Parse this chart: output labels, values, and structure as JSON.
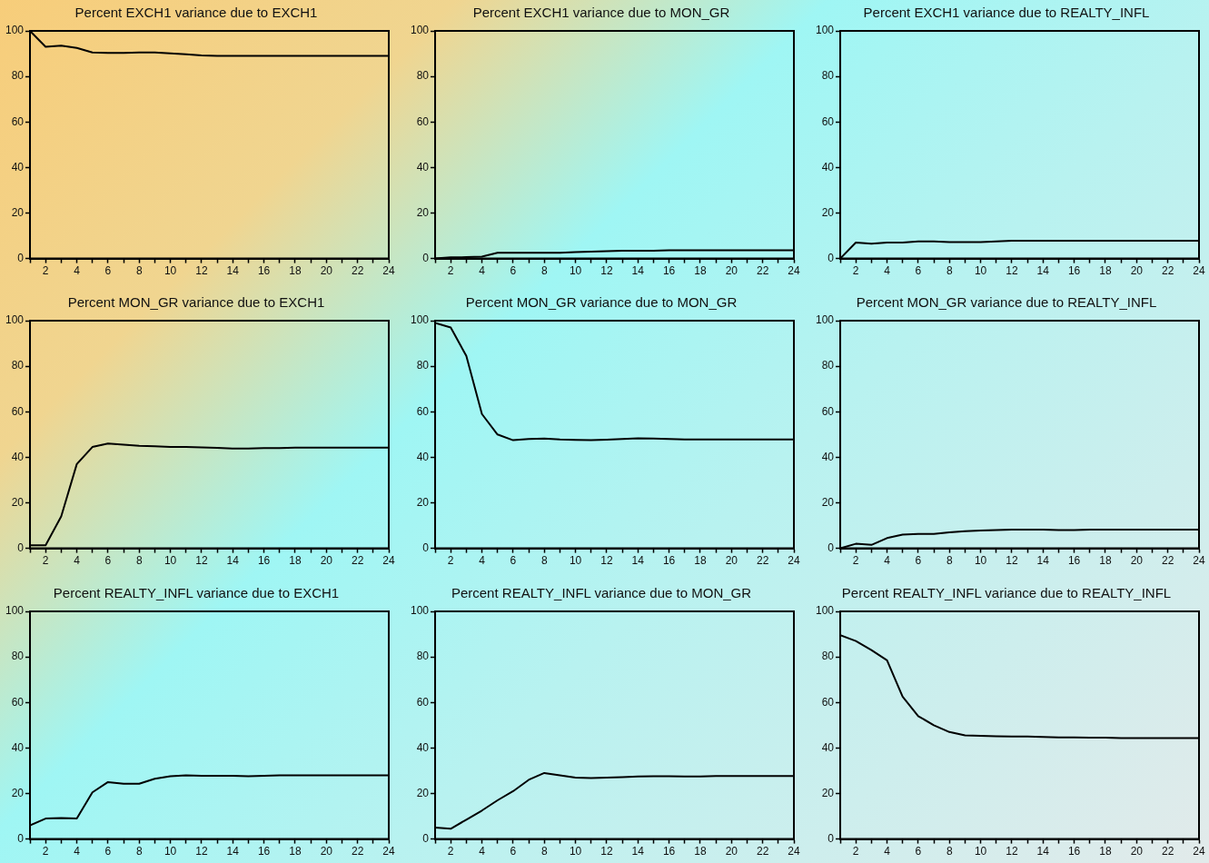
{
  "chart_data": [
    {
      "type": "line",
      "title": "Percent EXCH1 variance due to EXCH1",
      "x": [
        1,
        2,
        3,
        4,
        5,
        6,
        7,
        8,
        9,
        10,
        11,
        12,
        13,
        14,
        15,
        16,
        17,
        18,
        19,
        20,
        21,
        22,
        23,
        24
      ],
      "values": [
        100,
        93,
        93.5,
        92.5,
        90.5,
        90.3,
        90.3,
        90.5,
        90.5,
        90.1,
        89.7,
        89.2,
        89,
        89,
        89,
        89,
        89,
        89,
        89,
        89,
        89,
        89,
        89,
        89
      ],
      "color": "#000000",
      "marker": "none",
      "grid": false,
      "legend": false,
      "xlim": [
        1,
        24
      ],
      "xticks": [
        {
          "value": 1,
          "label": null
        },
        2,
        {
          "value": 3,
          "label": null
        },
        4,
        {
          "value": 5,
          "label": null
        },
        6,
        {
          "value": 7,
          "label": null
        },
        8,
        {
          "value": 9,
          "label": null
        },
        10,
        {
          "value": 11,
          "label": null
        },
        12,
        {
          "value": 13,
          "label": null
        },
        14,
        {
          "value": 15,
          "label": null
        },
        16,
        {
          "value": 17,
          "label": null
        },
        18,
        {
          "value": 19,
          "label": null
        },
        20,
        {
          "value": 21,
          "label": null
        },
        22,
        {
          "value": 23,
          "label": null
        },
        24
      ],
      "ylim": [
        0,
        100
      ],
      "yticks": [
        0,
        20,
        40,
        60,
        80,
        100
      ]
    },
    {
      "type": "line",
      "title": "Percent EXCH1 variance due to MON_GR",
      "x": [
        1,
        2,
        3,
        4,
        5,
        6,
        7,
        8,
        9,
        10,
        11,
        12,
        13,
        14,
        15,
        16,
        17,
        18,
        19,
        20,
        21,
        22,
        23,
        24
      ],
      "values": [
        0,
        0.5,
        0.6,
        0.8,
        2.5,
        2.5,
        2.5,
        2.5,
        2.5,
        2.8,
        3,
        3.2,
        3.4,
        3.4,
        3.4,
        3.6,
        3.6,
        3.6,
        3.6,
        3.6,
        3.6,
        3.6,
        3.6,
        3.6
      ],
      "color": "#000000",
      "marker": "none",
      "grid": false,
      "legend": false,
      "xlim": [
        1,
        24
      ],
      "xticks": [
        {
          "value": 1,
          "label": null
        },
        2,
        {
          "value": 3,
          "label": null
        },
        4,
        {
          "value": 5,
          "label": null
        },
        6,
        {
          "value": 7,
          "label": null
        },
        8,
        {
          "value": 9,
          "label": null
        },
        10,
        {
          "value": 11,
          "label": null
        },
        12,
        {
          "value": 13,
          "label": null
        },
        14,
        {
          "value": 15,
          "label": null
        },
        16,
        {
          "value": 17,
          "label": null
        },
        18,
        {
          "value": 19,
          "label": null
        },
        20,
        {
          "value": 21,
          "label": null
        },
        22,
        {
          "value": 23,
          "label": null
        },
        24
      ],
      "ylim": [
        0,
        100
      ],
      "yticks": [
        0,
        20,
        40,
        60,
        80,
        100
      ]
    },
    {
      "type": "line",
      "title": "Percent EXCH1 variance due to REALTY_INFL",
      "x": [
        1,
        2,
        3,
        4,
        5,
        6,
        7,
        8,
        9,
        10,
        11,
        12,
        13,
        14,
        15,
        16,
        17,
        18,
        19,
        20,
        21,
        22,
        23,
        24
      ],
      "values": [
        0,
        7,
        6.5,
        7,
        7,
        7.5,
        7.5,
        7.2,
        7.2,
        7.2,
        7.5,
        7.8,
        7.8,
        7.8,
        7.8,
        7.8,
        7.8,
        7.8,
        7.8,
        7.8,
        7.8,
        7.8,
        7.8,
        7.8
      ],
      "color": "#000000",
      "marker": "none",
      "grid": false,
      "legend": false,
      "xlim": [
        1,
        24
      ],
      "xticks": [
        {
          "value": 1,
          "label": null
        },
        2,
        {
          "value": 3,
          "label": null
        },
        4,
        {
          "value": 5,
          "label": null
        },
        6,
        {
          "value": 7,
          "label": null
        },
        8,
        {
          "value": 9,
          "label": null
        },
        10,
        {
          "value": 11,
          "label": null
        },
        12,
        {
          "value": 13,
          "label": null
        },
        14,
        {
          "value": 15,
          "label": null
        },
        16,
        {
          "value": 17,
          "label": null
        },
        18,
        {
          "value": 19,
          "label": null
        },
        20,
        {
          "value": 21,
          "label": null
        },
        22,
        {
          "value": 23,
          "label": null
        },
        24
      ],
      "ylim": [
        0,
        100
      ],
      "yticks": [
        0,
        20,
        40,
        60,
        80,
        100
      ]
    },
    {
      "type": "line",
      "title": "Percent MON_GR variance due to EXCH1",
      "x": [
        1,
        2,
        3,
        4,
        5,
        6,
        7,
        8,
        9,
        10,
        11,
        12,
        13,
        14,
        15,
        16,
        17,
        18,
        19,
        20,
        21,
        22,
        23,
        24
      ],
      "values": [
        1.3,
        1.3,
        14,
        37,
        44.5,
        46,
        45.5,
        45,
        44.8,
        44.5,
        44.5,
        44.3,
        44.1,
        43.8,
        43.8,
        44,
        44,
        44.2,
        44.2,
        44.2,
        44.2,
        44.2,
        44.2,
        44.2
      ],
      "color": "#000000",
      "marker": "none",
      "grid": false,
      "legend": false,
      "xlim": [
        1,
        24
      ],
      "xticks": [
        {
          "value": 1,
          "label": null
        },
        2,
        {
          "value": 3,
          "label": null
        },
        4,
        {
          "value": 5,
          "label": null
        },
        6,
        {
          "value": 7,
          "label": null
        },
        8,
        {
          "value": 9,
          "label": null
        },
        10,
        {
          "value": 11,
          "label": null
        },
        12,
        {
          "value": 13,
          "label": null
        },
        14,
        {
          "value": 15,
          "label": null
        },
        16,
        {
          "value": 17,
          "label": null
        },
        18,
        {
          "value": 19,
          "label": null
        },
        20,
        {
          "value": 21,
          "label": null
        },
        22,
        {
          "value": 23,
          "label": null
        },
        24
      ],
      "ylim": [
        0,
        100
      ],
      "yticks": [
        0,
        20,
        40,
        60,
        80,
        100
      ]
    },
    {
      "type": "line",
      "title": "Percent MON_GR variance due to MON_GR",
      "x": [
        1,
        2,
        3,
        4,
        5,
        6,
        7,
        8,
        9,
        10,
        11,
        12,
        13,
        14,
        15,
        16,
        17,
        18,
        19,
        20,
        21,
        22,
        23,
        24
      ],
      "values": [
        99,
        97,
        84.5,
        59,
        50,
        47.5,
        48,
        48.2,
        47.8,
        47.6,
        47.5,
        47.7,
        48,
        48.3,
        48.2,
        48,
        47.8,
        47.8,
        47.8,
        47.8,
        47.8,
        47.8,
        47.8,
        47.8
      ],
      "color": "#000000",
      "marker": "none",
      "grid": false,
      "legend": false,
      "xlim": [
        1,
        24
      ],
      "xticks": [
        {
          "value": 1,
          "label": null
        },
        2,
        {
          "value": 3,
          "label": null
        },
        4,
        {
          "value": 5,
          "label": null
        },
        6,
        {
          "value": 7,
          "label": null
        },
        8,
        {
          "value": 9,
          "label": null
        },
        10,
        {
          "value": 11,
          "label": null
        },
        12,
        {
          "value": 13,
          "label": null
        },
        14,
        {
          "value": 15,
          "label": null
        },
        16,
        {
          "value": 17,
          "label": null
        },
        18,
        {
          "value": 19,
          "label": null
        },
        20,
        {
          "value": 21,
          "label": null
        },
        22,
        {
          "value": 23,
          "label": null
        },
        24
      ],
      "ylim": [
        0,
        100
      ],
      "yticks": [
        0,
        20,
        40,
        60,
        80,
        100
      ]
    },
    {
      "type": "line",
      "title": "Percent MON_GR variance due to REALTY_INFL",
      "x": [
        1,
        2,
        3,
        4,
        5,
        6,
        7,
        8,
        9,
        10,
        11,
        12,
        13,
        14,
        15,
        16,
        17,
        18,
        19,
        20,
        21,
        22,
        23,
        24
      ],
      "values": [
        0,
        2,
        1.5,
        4.5,
        6,
        6.3,
        6.3,
        7,
        7.5,
        7.8,
        8,
        8.2,
        8.2,
        8.2,
        8,
        8,
        8.2,
        8.2,
        8.2,
        8.2,
        8.2,
        8.2,
        8.2,
        8.2
      ],
      "color": "#000000",
      "marker": "none",
      "grid": false,
      "legend": false,
      "xlim": [
        1,
        24
      ],
      "xticks": [
        {
          "value": 1,
          "label": null
        },
        2,
        {
          "value": 3,
          "label": null
        },
        4,
        {
          "value": 5,
          "label": null
        },
        6,
        {
          "value": 7,
          "label": null
        },
        8,
        {
          "value": 9,
          "label": null
        },
        10,
        {
          "value": 11,
          "label": null
        },
        12,
        {
          "value": 13,
          "label": null
        },
        14,
        {
          "value": 15,
          "label": null
        },
        16,
        {
          "value": 17,
          "label": null
        },
        18,
        {
          "value": 19,
          "label": null
        },
        20,
        {
          "value": 21,
          "label": null
        },
        22,
        {
          "value": 23,
          "label": null
        },
        24
      ],
      "ylim": [
        0,
        100
      ],
      "yticks": [
        0,
        20,
        40,
        60,
        80,
        100
      ]
    },
    {
      "type": "line",
      "title": "Percent REALTY_INFL variance due to EXCH1",
      "x": [
        1,
        2,
        3,
        4,
        5,
        6,
        7,
        8,
        9,
        10,
        11,
        12,
        13,
        14,
        15,
        16,
        17,
        18,
        19,
        20,
        21,
        22,
        23,
        24
      ],
      "values": [
        6,
        9,
        9.2,
        9,
        20.5,
        25,
        24.3,
        24.3,
        26.5,
        27.6,
        28,
        27.8,
        27.8,
        27.8,
        27.6,
        27.8,
        28,
        28,
        28,
        28,
        28,
        28,
        28,
        28
      ],
      "color": "#000000",
      "marker": "none",
      "grid": false,
      "legend": false,
      "xlim": [
        1,
        24
      ],
      "xticks": [
        {
          "value": 1,
          "label": null
        },
        2,
        {
          "value": 3,
          "label": null
        },
        4,
        {
          "value": 5,
          "label": null
        },
        6,
        {
          "value": 7,
          "label": null
        },
        8,
        {
          "value": 9,
          "label": null
        },
        10,
        {
          "value": 11,
          "label": null
        },
        12,
        {
          "value": 13,
          "label": null
        },
        14,
        {
          "value": 15,
          "label": null
        },
        16,
        {
          "value": 17,
          "label": null
        },
        18,
        {
          "value": 19,
          "label": null
        },
        20,
        {
          "value": 21,
          "label": null
        },
        22,
        {
          "value": 23,
          "label": null
        },
        24
      ],
      "ylim": [
        0,
        100
      ],
      "yticks": [
        0,
        20,
        40,
        60,
        80,
        100
      ]
    },
    {
      "type": "line",
      "title": "Percent REALTY_INFL variance due to MON_GR",
      "x": [
        1,
        2,
        3,
        4,
        5,
        6,
        7,
        8,
        9,
        10,
        11,
        12,
        13,
        14,
        15,
        16,
        17,
        18,
        19,
        20,
        21,
        22,
        23,
        24
      ],
      "values": [
        5,
        4.5,
        8.5,
        12.5,
        17,
        21,
        26,
        29,
        28,
        27,
        26.8,
        27,
        27.2,
        27.5,
        27.6,
        27.6,
        27.5,
        27.5,
        27.7,
        27.7,
        27.7,
        27.7,
        27.7,
        27.7
      ],
      "color": "#000000",
      "marker": "none",
      "grid": false,
      "legend": false,
      "xlim": [
        1,
        24
      ],
      "xticks": [
        {
          "value": 1,
          "label": null
        },
        2,
        {
          "value": 3,
          "label": null
        },
        4,
        {
          "value": 5,
          "label": null
        },
        6,
        {
          "value": 7,
          "label": null
        },
        8,
        {
          "value": 9,
          "label": null
        },
        10,
        {
          "value": 11,
          "label": null
        },
        12,
        {
          "value": 13,
          "label": null
        },
        14,
        {
          "value": 15,
          "label": null
        },
        16,
        {
          "value": 17,
          "label": null
        },
        18,
        {
          "value": 19,
          "label": null
        },
        20,
        {
          "value": 21,
          "label": null
        },
        22,
        {
          "value": 23,
          "label": null
        },
        24
      ],
      "ylim": [
        0,
        100
      ],
      "yticks": [
        0,
        20,
        40,
        60,
        80,
        100
      ]
    },
    {
      "type": "line",
      "title": "Percent REALTY_INFL variance due to REALTY_INFL",
      "x": [
        1,
        2,
        3,
        4,
        5,
        6,
        7,
        8,
        9,
        10,
        11,
        12,
        13,
        14,
        15,
        16,
        17,
        18,
        19,
        20,
        21,
        22,
        23,
        24
      ],
      "values": [
        89.5,
        87,
        83,
        78.5,
        62.5,
        54,
        50,
        47,
        45.5,
        45.3,
        45.1,
        45,
        45,
        44.8,
        44.6,
        44.6,
        44.5,
        44.5,
        44.3,
        44.3,
        44.3,
        44.3,
        44.3,
        44.3
      ],
      "color": "#000000",
      "marker": "none",
      "grid": false,
      "legend": false,
      "xlim": [
        1,
        24
      ],
      "xticks": [
        {
          "value": 1,
          "label": null
        },
        2,
        {
          "value": 3,
          "label": null
        },
        4,
        {
          "value": 5,
          "label": null
        },
        6,
        {
          "value": 7,
          "label": null
        },
        8,
        {
          "value": 9,
          "label": null
        },
        10,
        {
          "value": 11,
          "label": null
        },
        12,
        {
          "value": 13,
          "label": null
        },
        14,
        {
          "value": 15,
          "label": null
        },
        16,
        {
          "value": 17,
          "label": null
        },
        18,
        {
          "value": 19,
          "label": null
        },
        20,
        {
          "value": 21,
          "label": null
        },
        22,
        {
          "value": 23,
          "label": null
        },
        24
      ],
      "ylim": [
        0,
        100
      ],
      "yticks": [
        0,
        20,
        40,
        60,
        80,
        100
      ]
    }
  ]
}
